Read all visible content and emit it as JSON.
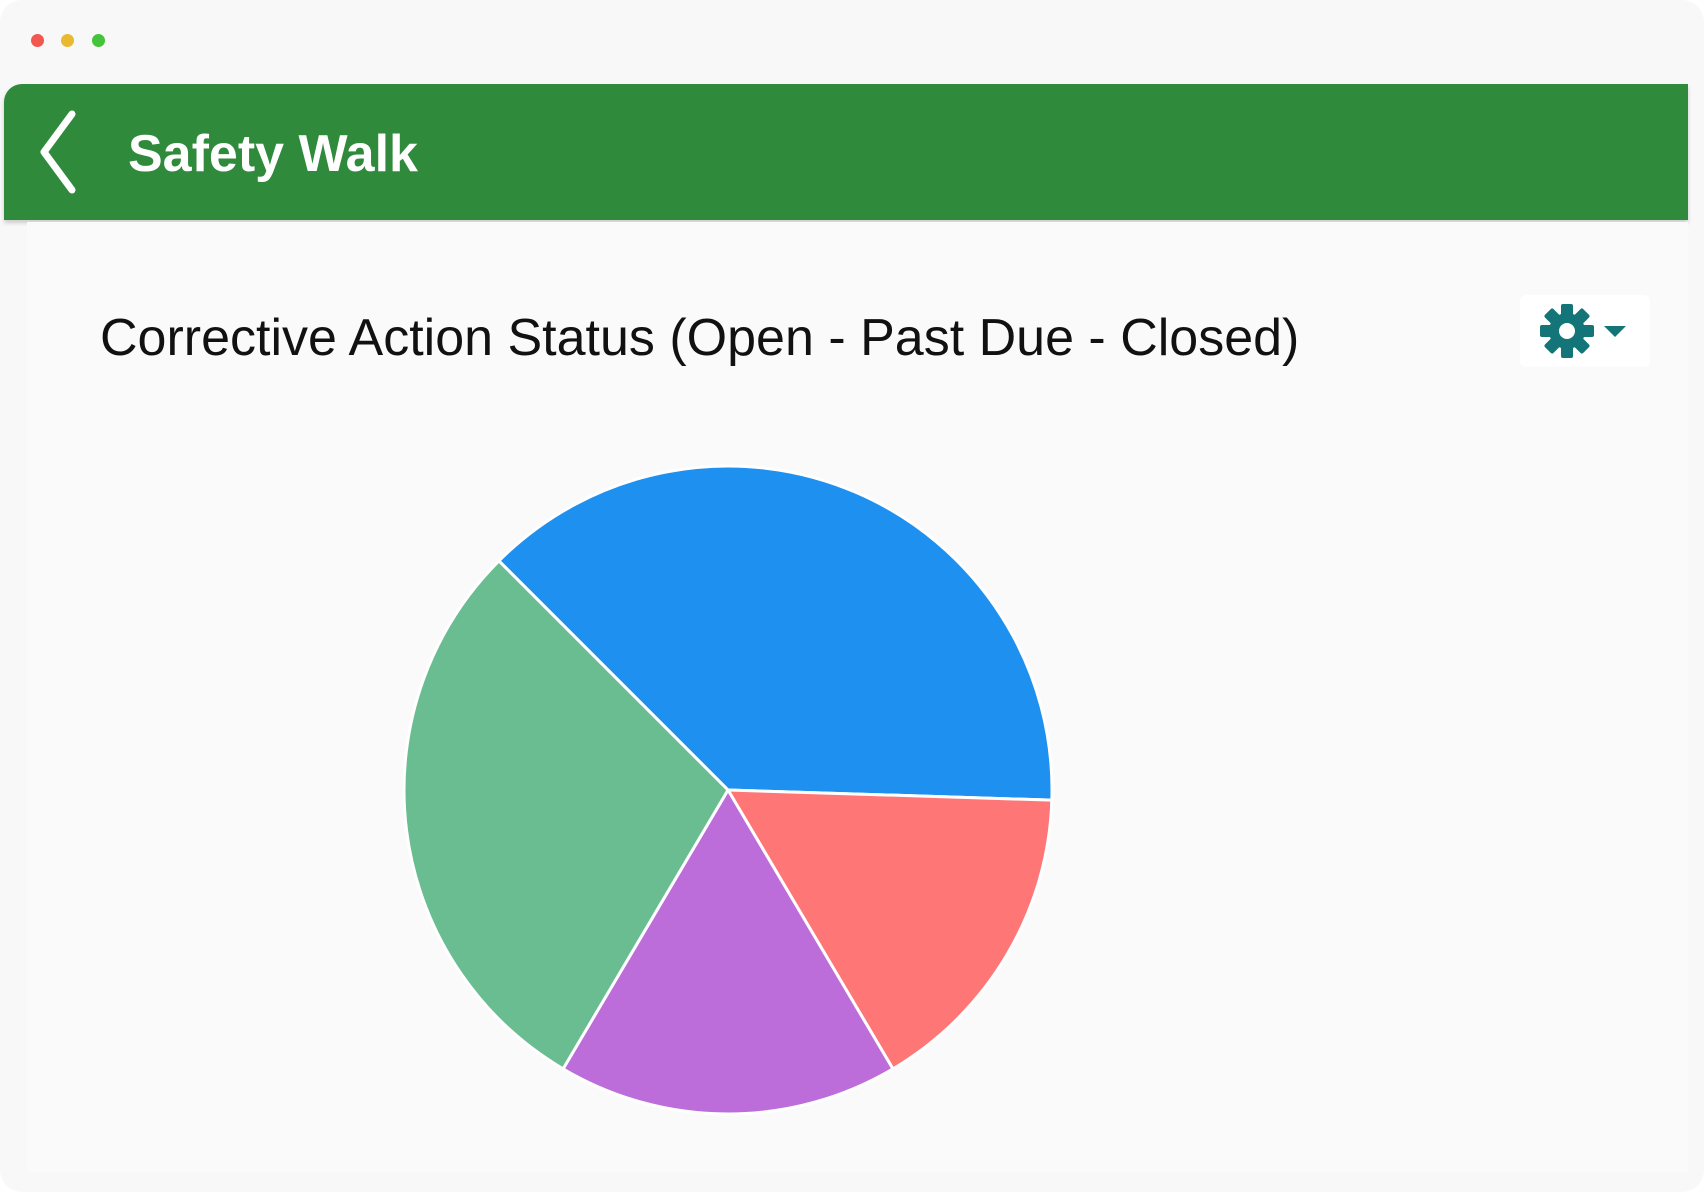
{
  "header": {
    "title": "Safety Walk"
  },
  "chart_data": {
    "type": "pie",
    "title": "Corrective Action Status (Open - Past Due - Closed)",
    "values": [
      38,
      16,
      17,
      29
    ],
    "colors": [
      "#1e90ef",
      "#fe7676",
      "#bd6dd9",
      "#69bd91"
    ]
  }
}
